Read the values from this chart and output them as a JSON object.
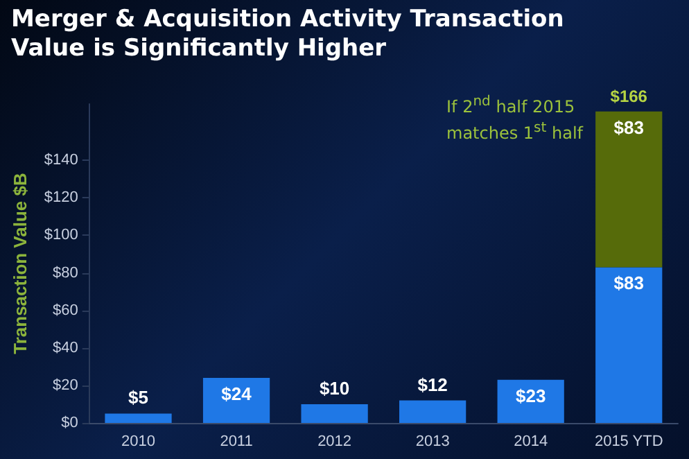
{
  "chart_data": {
    "type": "bar",
    "title": "Merger & Acquisition Activity Transaction Value is Significantly Higher",
    "ylabel": "Transaction Value $B",
    "categories": [
      "2010",
      "2011",
      "2012",
      "2013",
      "2014",
      "2015 YTD"
    ],
    "stacked": true,
    "series": [
      {
        "color": "#1f78e6",
        "values": [
          5,
          24,
          10,
          12,
          23,
          83
        ],
        "value_labels": [
          "$5",
          "$24",
          "$10",
          "$12",
          "$23",
          "$83"
        ]
      },
      {
        "color": "#566b0a",
        "values": [
          null,
          null,
          null,
          null,
          null,
          83
        ],
        "value_labels": [
          null,
          null,
          null,
          null,
          null,
          "$83"
        ]
      }
    ],
    "totals": [
      null,
      null,
      null,
      null,
      null,
      "$166"
    ],
    "annotations": [
      "If 2$^{nd}$ half 2015 matches 1$^{st}$ half"
    ],
    "ylim": [
      0,
      170
    ],
    "yticks": [
      {
        "value": 0,
        "label": "$0"
      },
      {
        "value": 20,
        "label": "$20"
      },
      {
        "value": 40,
        "label": "$40"
      },
      {
        "value": 60,
        "label": "$60"
      },
      {
        "value": 80,
        "label": "$80"
      },
      {
        "value": 100,
        "label": "$100"
      },
      {
        "value": 120,
        "label": "$120"
      },
      {
        "value": 140,
        "label": "$140"
      }
    ],
    "grid": false
  }
}
